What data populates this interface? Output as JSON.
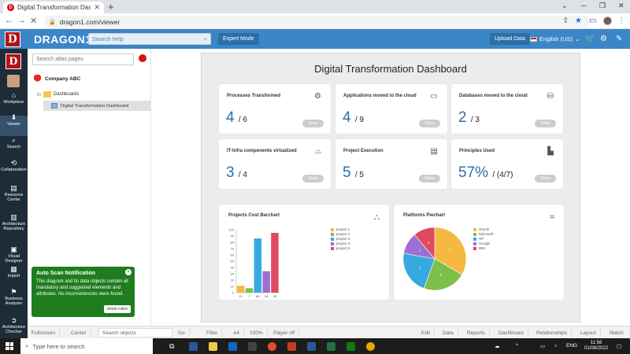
{
  "browser": {
    "tab_title": "Digital Transformation Dashboa",
    "url": "dragon1.com/viewer",
    "favicon_letter": "D"
  },
  "app": {
    "brand": "DRAGON1",
    "logo_letter": "D",
    "search_placeholder": "Search help",
    "expert_mode": "Expert Mode",
    "upload": "Upload Data",
    "language": "English (US)"
  },
  "rail": {
    "items": [
      {
        "label": "Workplace",
        "icon": "home-icon"
      },
      {
        "label": "Viewer",
        "icon": "download-icon"
      },
      {
        "label": "Search",
        "icon": "search-icon"
      },
      {
        "label": "Collaboration",
        "icon": "share-icon"
      },
      {
        "label": "Resource Center",
        "icon": "book-icon"
      },
      {
        "label": "Architecture Repository",
        "icon": "building-icon"
      },
      {
        "label": "Visual Designer",
        "icon": "image-icon"
      },
      {
        "label": "Import",
        "icon": "table-icon"
      },
      {
        "label": "Business Analyzer",
        "icon": "flag-icon"
      },
      {
        "label": "Architecture Checker",
        "icon": "arrow-circle-icon"
      }
    ]
  },
  "tree": {
    "search_placeholder": "Search atlas pages",
    "company": "Company ABC",
    "folder": "Dashboards",
    "page": "Digital Transformation Dashboard"
  },
  "toast": {
    "title": "Auto Scan Notification",
    "body": "This diagram and its data objects contain all mandatory and suggested elements and attributes. No inconsistencies were found.",
    "button": "show rules",
    "close": "×"
  },
  "dashboard": {
    "title": "Digital Transformation Dashboard",
    "show_label": "Show",
    "cards": [
      {
        "title": "Processes Transformed",
        "value": "4",
        "sub": "/ 6",
        "icon": "gear-icon"
      },
      {
        "title": "Applications moved to the cloud",
        "value": "4",
        "sub": "/ 9",
        "icon": "window-icon"
      },
      {
        "title": "Databases moved to the cloud",
        "value": "2",
        "sub": "/ 3",
        "icon": "database-icon"
      },
      {
        "title": "IT-Infra components virtualized",
        "value": "3",
        "sub": "/ 4",
        "icon": "server-icon"
      },
      {
        "title": "Project Execution",
        "value": "5",
        "sub": "/ 5",
        "icon": "chart-icon"
      },
      {
        "title": "Principles Used",
        "value": "57%",
        "sub": "/ (4/7)",
        "icon": "factory-icon"
      }
    ]
  },
  "chart_data": [
    {
      "type": "bar",
      "title": "Projects Cost Barchart",
      "categories": [
        "11",
        "7",
        "86",
        "34",
        "95"
      ],
      "series": [
        {
          "name": "project 1",
          "color": "#f5b942",
          "value": 11
        },
        {
          "name": "project 2",
          "color": "#7dbf4a",
          "value": 7
        },
        {
          "name": "project 3",
          "color": "#36a9e0",
          "value": 86
        },
        {
          "name": "project 4",
          "color": "#9b6fd6",
          "value": 34
        },
        {
          "name": "project 5",
          "color": "#e04a5f",
          "value": 95
        }
      ],
      "values": [
        11,
        7,
        86,
        34,
        95
      ],
      "ylim": [
        0,
        100
      ],
      "yticks": [
        "0",
        "10",
        "20",
        "30",
        "40",
        "50",
        "60",
        "70",
        "80",
        "90",
        "100"
      ]
    },
    {
      "type": "pie",
      "title": "Platforms Piechart",
      "labels": [
        "Oracle",
        "Microsoft",
        "HP",
        "Google",
        "IBM"
      ],
      "values": [
        3,
        2,
        2,
        1,
        1
      ],
      "colors": [
        "#f5b942",
        "#7dbf4a",
        "#36a9e0",
        "#9b6fd6",
        "#e04a5f"
      ]
    }
  ],
  "bottombar": {
    "fullscreen": "Fullscreen",
    "center": "Center",
    "search": "Search objects",
    "go": "Go",
    "filter": "Filter",
    "paper": "A4",
    "zoom": "100%",
    "player": "Player off",
    "edit": "Edit",
    "data": "Data",
    "reports": "Reports",
    "dashboard": "Dashboard",
    "relationships": "Relationships",
    "layout": "Layout",
    "match": "Match"
  },
  "taskbar": {
    "search_placeholder": "Type here to search",
    "lang": "ENG",
    "time": "11:56",
    "date": "01/08/2022"
  }
}
